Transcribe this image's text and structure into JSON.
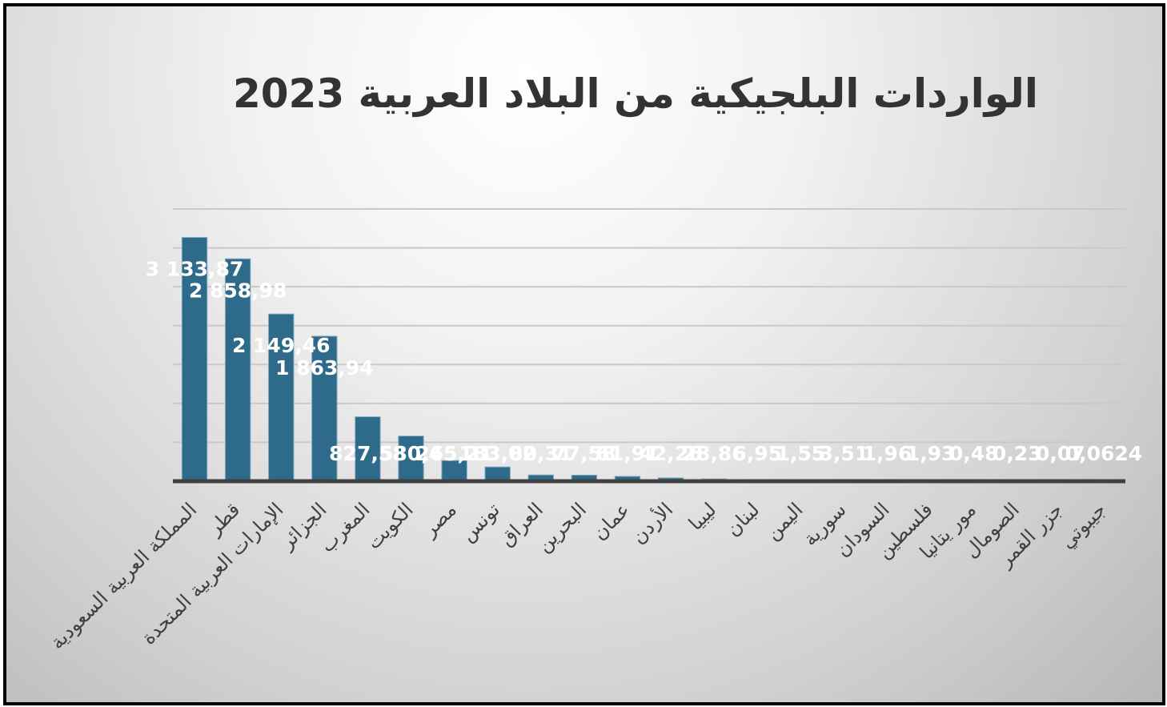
{
  "chart_data": {
    "type": "bar",
    "title": "الواردات البلجيكية من البلاد العربية 2023",
    "xlabel": "",
    "ylabel": "",
    "ylim": [
      0,
      3500
    ],
    "grid": true,
    "legend": "none",
    "bar_color": "#2E6A8A",
    "categories": [
      "المملكة العربية السعودية",
      "قطر",
      "الإمارات العربية المتحدة",
      "الجزائر",
      "المغرب",
      "الكويت",
      "مصر",
      "تونس",
      "العراق",
      "البحرين",
      "عمان",
      "الأردن",
      "ليبيا",
      "لبنان",
      "اليمن",
      "سورية",
      "السودان",
      "فلسطين",
      "مور يتانيا",
      "الصومال",
      "جزر القمر",
      "جيبوتي"
    ],
    "values": [
      3133.87,
      2858.98,
      2149.46,
      1863.94,
      827.58,
      580.4,
      265.21,
      183.02,
      80.31,
      77.58,
      61.91,
      42.26,
      28.86,
      6.95,
      1.55,
      3.51,
      1.96,
      1.93,
      0.48,
      0.23,
      0.07,
      0.06
    ],
    "data_labels": [
      "3 133,87",
      "2 858,98",
      "2 149,46",
      "1 863,94",
      "827,58",
      "580,4",
      "265,21",
      "183,02",
      "80,31",
      "77,58",
      "61,91",
      "42,26",
      "28,86",
      "6,95",
      "1,55",
      "3,51",
      "1,96",
      "1,93",
      "0,48",
      "0,23",
      "0,07",
      "0,0624"
    ]
  }
}
